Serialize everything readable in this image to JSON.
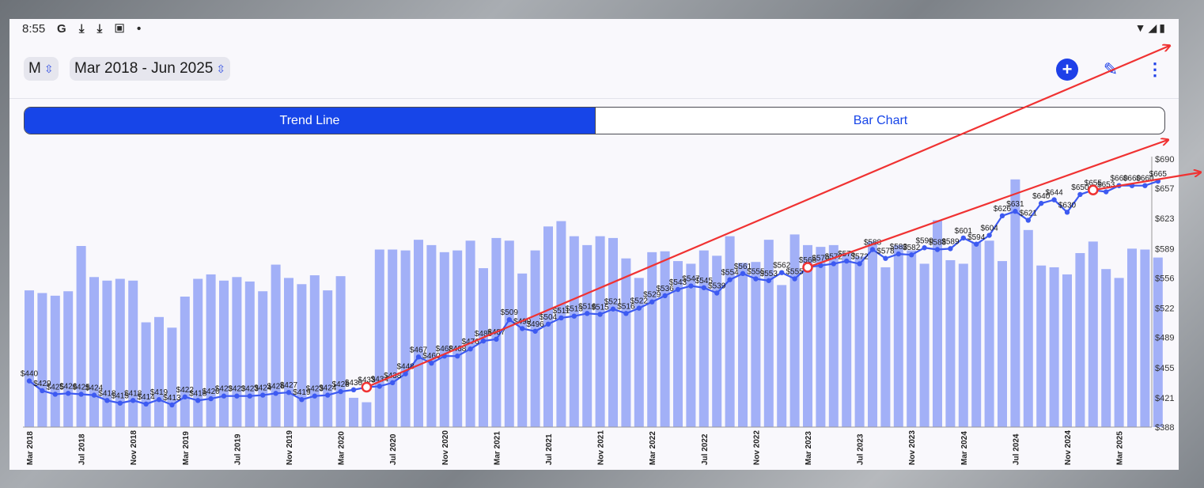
{
  "status_bar": {
    "time": "8:55",
    "left_icons": "G ⤓ ⤓ ▣ •",
    "right_icons": "▼◢▮"
  },
  "toolbar": {
    "period_value": "M",
    "range_value": "Mar 2018 - Jun 2025",
    "add_icon": "+",
    "edit_icon": "✎",
    "more_icon": "⋮"
  },
  "tabs": {
    "trend_line": "Trend Line",
    "bar_chart": "Bar Chart"
  },
  "colors": {
    "accent": "#1745e8",
    "bar": "#a2b0f7",
    "line": "#3d5af1",
    "annotation": "#f03232"
  },
  "chart_data": {
    "type": "bar",
    "xlabel": "",
    "ylabel": "",
    "ylim": [
      388,
      690
    ],
    "y_ticks": [
      "$690",
      "$657",
      "$623",
      "$589",
      "$556",
      "$522",
      "$489",
      "$455",
      "$421",
      "$388"
    ],
    "x_tick_labels": [
      {
        "i": 0,
        "label": "Mar 2018"
      },
      {
        "i": 4,
        "label": "Jul 2018"
      },
      {
        "i": 8,
        "label": "Nov 2018"
      },
      {
        "i": 12,
        "label": "Mar 2019"
      },
      {
        "i": 16,
        "label": "Jul 2019"
      },
      {
        "i": 20,
        "label": "Nov 2019"
      },
      {
        "i": 24,
        "label": "Mar 2020"
      },
      {
        "i": 28,
        "label": "Jul 2020"
      },
      {
        "i": 32,
        "label": "Nov 2020"
      },
      {
        "i": 36,
        "label": "Mar 2021"
      },
      {
        "i": 40,
        "label": "Jul 2021"
      },
      {
        "i": 44,
        "label": "Nov 2021"
      },
      {
        "i": 48,
        "label": "Mar 2022"
      },
      {
        "i": 52,
        "label": "Jul 2022"
      },
      {
        "i": 56,
        "label": "Nov 2022"
      },
      {
        "i": 60,
        "label": "Mar 2023"
      },
      {
        "i": 64,
        "label": "Jul 2023"
      },
      {
        "i": 68,
        "label": "Nov 2023"
      },
      {
        "i": 72,
        "label": "Mar 2024"
      },
      {
        "i": 76,
        "label": "Jul 2024"
      },
      {
        "i": 80,
        "label": "Nov 2024"
      },
      {
        "i": 84,
        "label": "Mar 2025"
      }
    ],
    "bar_values": [
      542,
      539,
      536,
      541,
      592,
      557,
      553,
      555,
      553,
      506,
      512,
      500,
      535,
      555,
      560,
      553,
      557,
      552,
      541,
      571,
      556,
      549,
      559,
      542,
      558,
      421,
      416,
      588,
      588,
      587,
      599,
      593,
      585,
      587,
      598,
      567,
      601,
      598,
      561,
      587,
      614,
      620,
      603,
      593,
      603,
      601,
      578,
      556,
      585,
      586,
      575,
      572,
      587,
      581,
      603,
      573,
      574,
      599,
      548,
      605,
      593,
      591,
      593,
      584,
      580,
      597,
      568,
      593,
      587,
      572,
      621,
      576,
      572,
      596,
      598,
      575,
      667,
      610,
      570,
      568,
      560,
      584,
      597,
      566,
      556,
      589,
      588,
      579
    ],
    "trend_values": [
      440,
      429,
      425,
      426,
      425,
      424,
      418,
      415,
      418,
      414,
      419,
      413,
      422,
      418,
      420,
      423,
      423,
      423,
      424,
      426,
      427,
      419,
      423,
      424,
      428,
      430,
      433,
      434,
      438,
      448,
      467,
      460,
      468,
      468,
      476,
      485,
      487,
      509,
      499,
      496,
      504,
      511,
      513,
      516,
      515,
      521,
      516,
      522,
      529,
      536,
      543,
      547,
      545,
      539,
      554,
      561,
      555,
      553,
      562,
      555,
      568,
      570,
      572,
      575,
      572,
      588,
      578,
      583,
      582,
      590,
      588,
      589,
      601,
      594,
      604,
      626,
      631,
      621,
      640,
      644,
      630,
      650,
      655,
      653,
      660,
      660,
      660,
      665
    ],
    "trend_labels": {
      "0": "$440",
      "1": "$429",
      "2": "$425",
      "3": "$426",
      "4": "$425",
      "5": "$424",
      "6": "$418",
      "7": "$415",
      "8": "$418",
      "9": "$414",
      "10": "$419",
      "11": "$413",
      "12": "$422",
      "13": "$418",
      "14": "$420",
      "15": "$423",
      "16": "$423",
      "17": "$423",
      "18": "$424",
      "19": "$426",
      "20": "$427",
      "21": "$419",
      "22": "$423",
      "23": "$424",
      "24": "$428",
      "25": "$430",
      "26": "$433",
      "27": "$434",
      "28": "$438",
      "29": "$448",
      "30": "$467",
      "31": "$460",
      "32": "$468",
      "33": "$468",
      "34": "$476",
      "35": "$485",
      "36": "$487",
      "37": "$509",
      "38": "$499",
      "39": "$496",
      "40": "$504",
      "41": "$511",
      "42": "$513",
      "43": "$516",
      "44": "$515",
      "45": "$521",
      "46": "$516",
      "47": "$522",
      "48": "$529",
      "49": "$536",
      "50": "$543",
      "51": "$547",
      "52": "$545",
      "53": "$539",
      "54": "$554",
      "55": "$561",
      "56": "$555",
      "57": "$553",
      "58": "$562",
      "59": "$555",
      "60": "$568",
      "61": "$570",
      "62": "$572",
      "63": "$575",
      "64": "$572",
      "65": "$588",
      "66": "$578",
      "67": "$583",
      "68": "$582",
      "69": "$590",
      "70": "$588",
      "71": "$589",
      "72": "$601",
      "73": "$594",
      "74": "$604",
      "75": "$626",
      "76": "$631",
      "77": "$621",
      "78": "$640",
      "79": "$644",
      "80": "$630",
      "81": "$650",
      "82": "$655",
      "83": "$653",
      "84": "$660",
      "85": "$660",
      "86": "$660",
      "87": "$665"
    },
    "highlighted_points": [
      26,
      60,
      82
    ]
  }
}
